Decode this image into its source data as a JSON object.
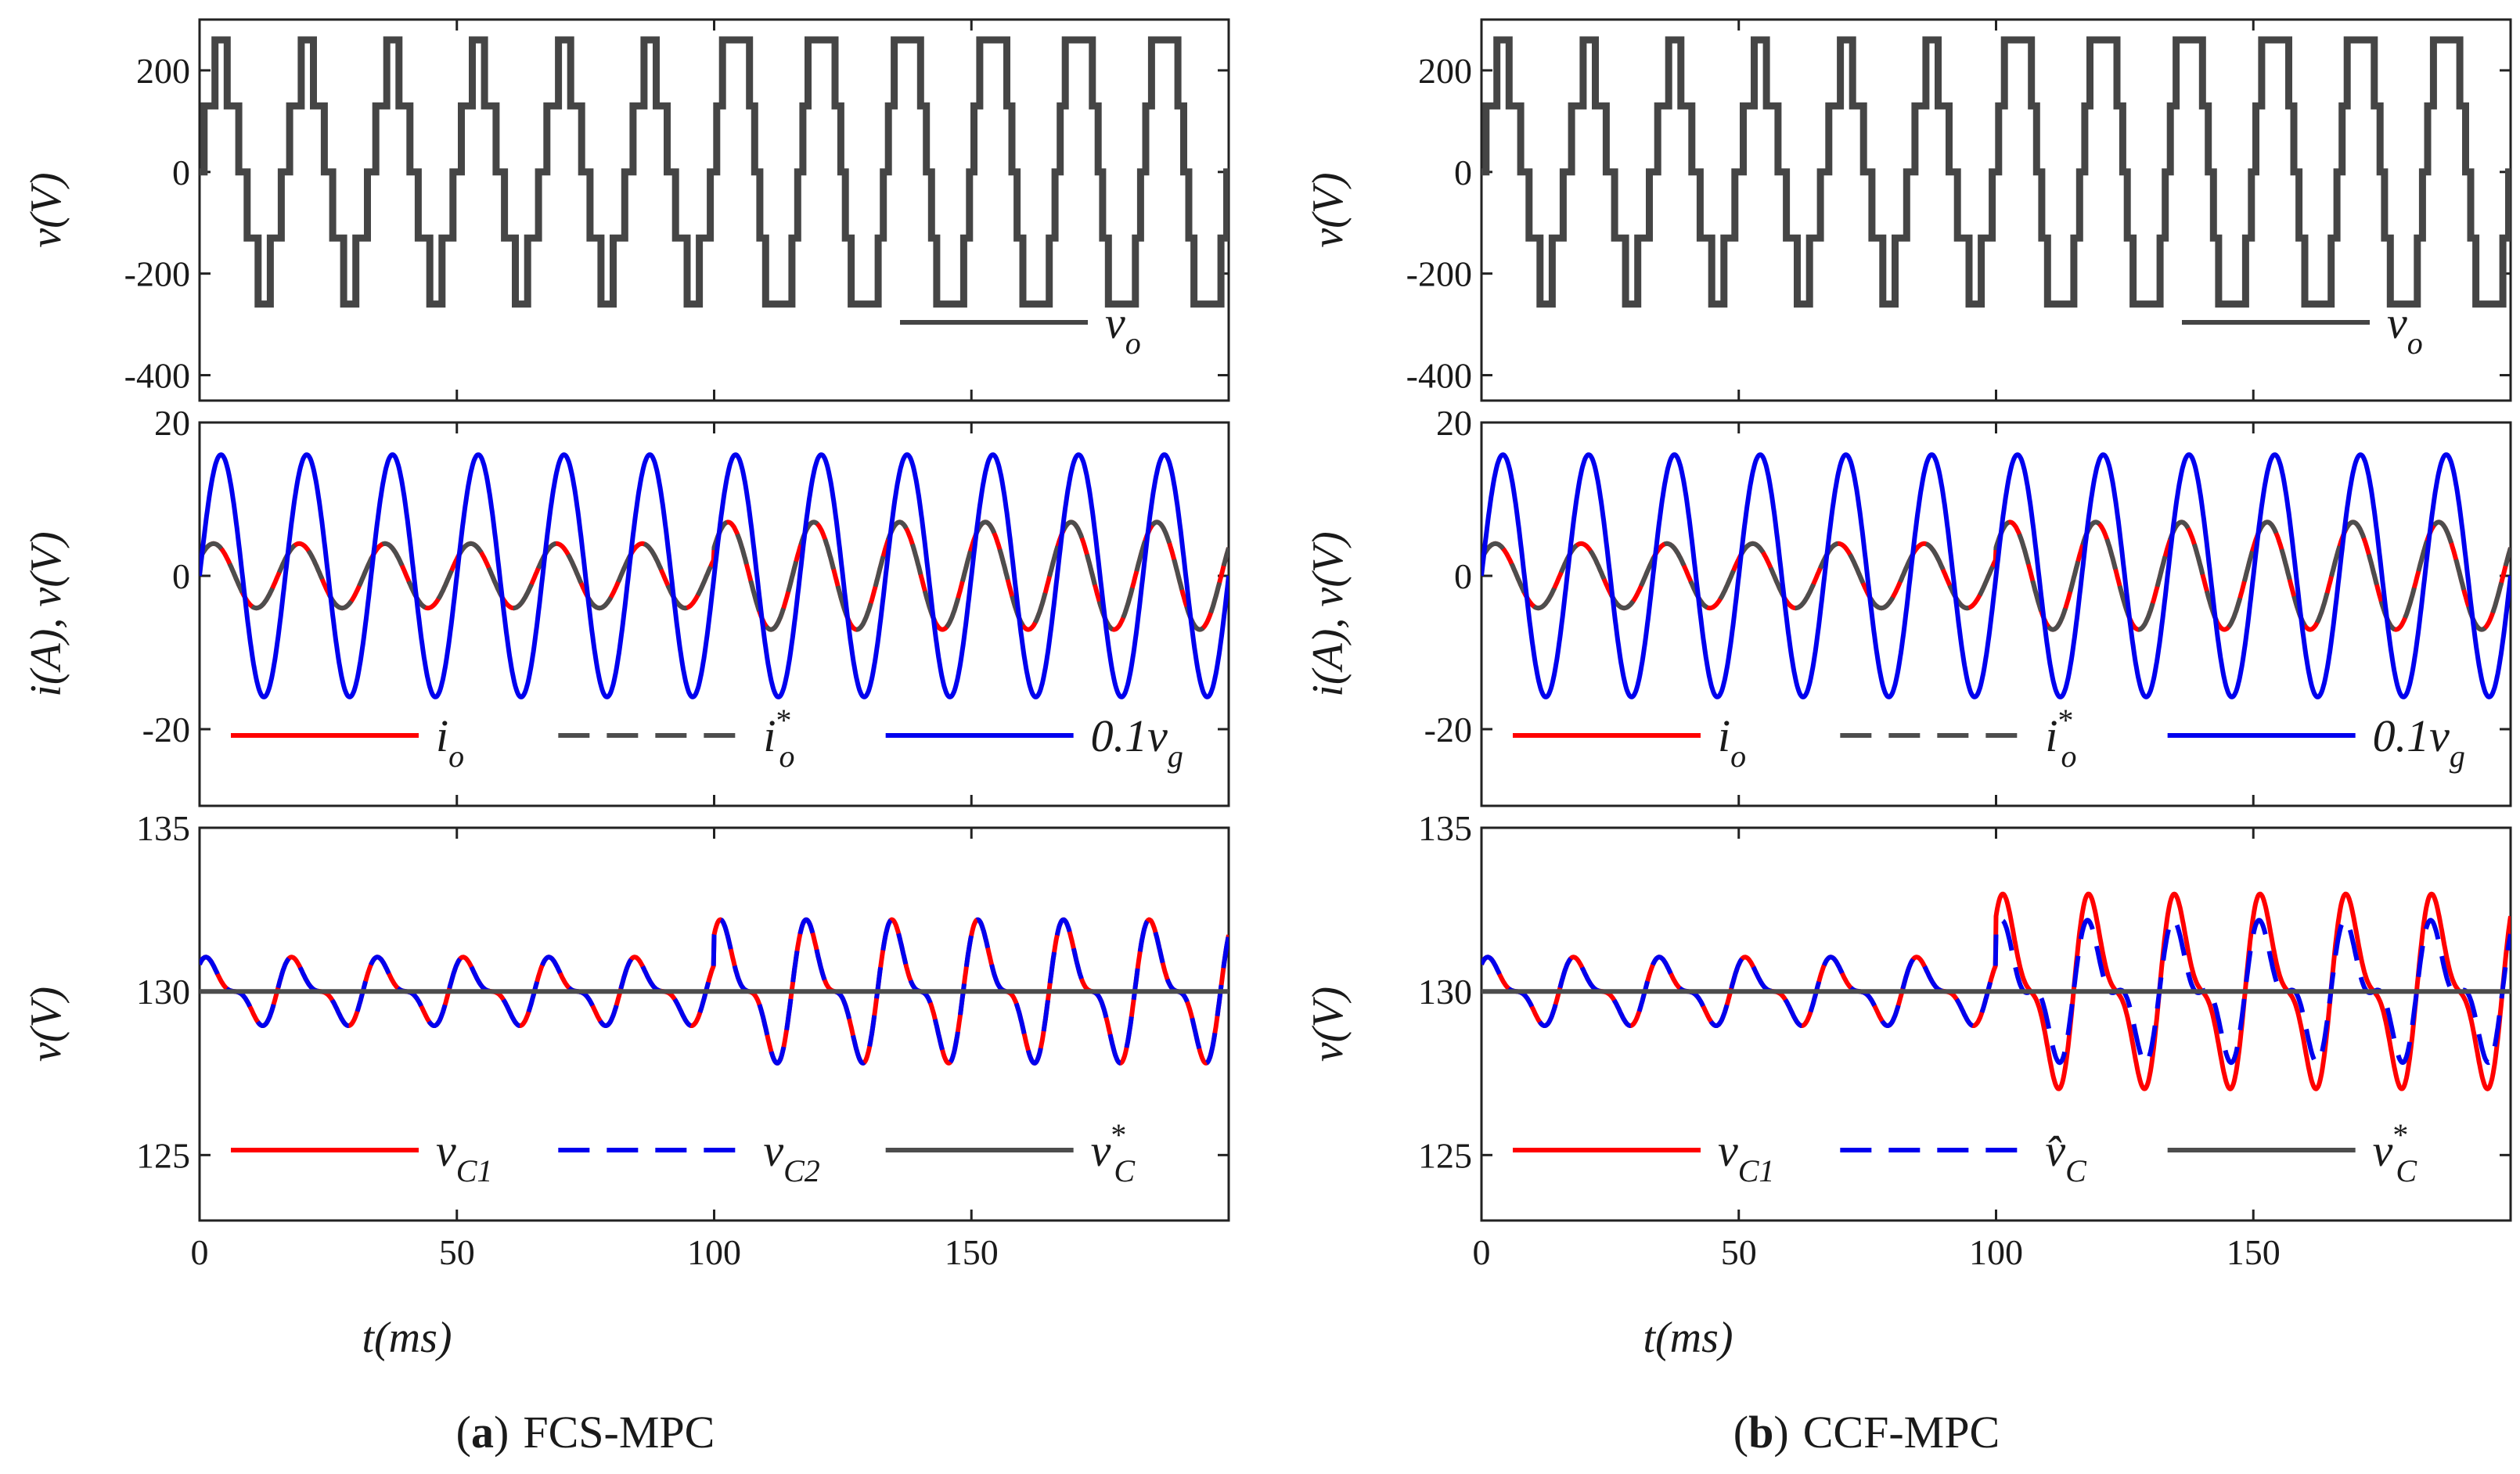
{
  "colors": {
    "red": "#ff0000",
    "blue": "#0000ee",
    "gray": "#4d4d4d",
    "dark": "#454545",
    "axis": "#222222"
  },
  "captions": [
    {
      "letter": "a",
      "open": "(",
      "close": ")",
      "text": "FCS-MPC"
    },
    {
      "letter": "b",
      "open": "(",
      "close": ")",
      "text": "CCF-MPC"
    }
  ],
  "xaxis": {
    "label": "t(ms)",
    "ticks": [
      "0",
      "50",
      "100",
      "150"
    ],
    "tick_values": [
      0,
      50,
      100,
      150
    ],
    "range": [
      0,
      200
    ]
  },
  "chart_data": [
    {
      "id": "a-top",
      "type": "line",
      "ylabel": "v(V)",
      "ylim": [
        -450,
        300
      ],
      "yticks": [
        -400,
        -200,
        0,
        200
      ],
      "ytick_labels": [
        "-400",
        "-200",
        "0",
        "200"
      ],
      "xlim": [
        0,
        200
      ],
      "series": [
        {
          "name": "v_o",
          "label": "v o",
          "kind": "multilevel",
          "color": "dark",
          "levels": [
            -260,
            -130,
            0,
            130,
            260
          ],
          "freq_hz": 60,
          "amp1": 160,
          "amp2": 260,
          "t_switch_ms": 100
        }
      ],
      "legend": [
        {
          "text": "v",
          "sub": "o",
          "color": "dark",
          "dash": "solid"
        }
      ]
    },
    {
      "id": "a-mid",
      "type": "line",
      "ylabel": "i(A), v(V)",
      "ylim": [
        -30,
        20
      ],
      "yticks": [
        -20,
        0,
        20
      ],
      "ytick_labels": [
        "-20",
        "0",
        "20"
      ],
      "xlim": [
        0,
        200
      ],
      "series": [
        {
          "name": "i_o",
          "color": "red",
          "amp1": 4.2,
          "amp2": 7,
          "phase": 0.55,
          "freq_hz": 60,
          "t_switch_ms": 100
        },
        {
          "name": "i_o*",
          "color": "gray",
          "amp1": 4.2,
          "amp2": 7,
          "phase": 0.55,
          "freq_hz": 60,
          "t_switch_ms": 100,
          "dash": true
        },
        {
          "name": "0.1v_g",
          "color": "blue",
          "amp1": 15.8,
          "amp2": 15.8,
          "phase": 0,
          "freq_hz": 60,
          "t_switch_ms": 100
        }
      ],
      "legend": [
        {
          "text": "i",
          "sub": "o",
          "color": "red",
          "dash": "solid"
        },
        {
          "text": "i",
          "sub": "o",
          "sup": "*",
          "color": "gray",
          "dash": "dash"
        },
        {
          "text": "0.1v",
          "sub": "g",
          "color": "blue",
          "dash": "solid"
        }
      ]
    },
    {
      "id": "a-bot",
      "type": "line",
      "ylabel": "v(V)",
      "ylim": [
        123,
        135
      ],
      "yticks": [
        125,
        130,
        135
      ],
      "ytick_labels": [
        "125",
        "130",
        "135"
      ],
      "xlim": [
        0,
        200
      ],
      "series": [
        {
          "name": "v_C1",
          "color": "red",
          "ref": 130,
          "amp1": 1.1,
          "amp2": 2.3,
          "offset_b": 0
        },
        {
          "name": "v_C2",
          "color": "blue",
          "ref": 130,
          "amp1": 1.1,
          "amp2": 2.3,
          "offset_b": 0,
          "dash": true
        },
        {
          "name": "v_C*",
          "color": "gray",
          "ref": 130,
          "flat": true
        }
      ],
      "legend": [
        {
          "text": "v",
          "sub": "C1",
          "color": "red",
          "dash": "solid"
        },
        {
          "text": "v",
          "sub": "C2",
          "color": "blue",
          "dash": "dash"
        },
        {
          "text": "v",
          "sub": "C",
          "sup": "*",
          "color": "gray",
          "dash": "solid"
        }
      ]
    },
    {
      "id": "b-top",
      "type": "line",
      "ylabel": "v(V)",
      "ylim": [
        -450,
        300
      ],
      "yticks": [
        -400,
        -200,
        0,
        200
      ],
      "ytick_labels": [
        "-400",
        "-200",
        "0",
        "200"
      ],
      "xlim": [
        0,
        200
      ],
      "series": [
        {
          "name": "v_o",
          "kind": "multilevel",
          "color": "dark",
          "levels": [
            -260,
            -130,
            0,
            130,
            260
          ],
          "freq_hz": 60,
          "amp1": 160,
          "amp2": 260,
          "t_switch_ms": 100
        }
      ],
      "legend": [
        {
          "text": "v",
          "sub": "o",
          "color": "dark",
          "dash": "solid"
        }
      ]
    },
    {
      "id": "b-mid",
      "type": "line",
      "ylabel": "i(A), v(V)",
      "ylim": [
        -30,
        20
      ],
      "yticks": [
        -20,
        0,
        20
      ],
      "ytick_labels": [
        "-20",
        "0",
        "20"
      ],
      "xlim": [
        0,
        200
      ],
      "series": [
        {
          "name": "i_o",
          "color": "red",
          "amp1": 4.2,
          "amp2": 7,
          "phase": 0.55,
          "freq_hz": 60,
          "t_switch_ms": 100
        },
        {
          "name": "i_o*",
          "color": "gray",
          "amp1": 4.2,
          "amp2": 7,
          "phase": 0.55,
          "freq_hz": 60,
          "t_switch_ms": 100,
          "dash": true
        },
        {
          "name": "0.1v_g",
          "color": "blue",
          "amp1": 15.8,
          "amp2": 15.8,
          "phase": 0,
          "freq_hz": 60,
          "t_switch_ms": 100
        }
      ],
      "legend": [
        {
          "text": "i",
          "sub": "o",
          "color": "red",
          "dash": "solid"
        },
        {
          "text": "i",
          "sub": "o",
          "sup": "*",
          "color": "gray",
          "dash": "dash"
        },
        {
          "text": "0.1v",
          "sub": "g",
          "color": "blue",
          "dash": "solid"
        }
      ]
    },
    {
      "id": "b-bot",
      "type": "line",
      "ylabel": "v(V)",
      "ylim": [
        123,
        135
      ],
      "yticks": [
        125,
        130,
        135
      ],
      "ytick_labels": [
        "125",
        "130",
        "135"
      ],
      "xlim": [
        0,
        200
      ],
      "series": [
        {
          "name": "v_C1",
          "color": "red",
          "ref": 130,
          "amp1": 1.1,
          "amp2": 2.8,
          "offset_b": 0.35
        },
        {
          "name": "v_C_hat",
          "color": "blue",
          "ref": 130,
          "amp1": 1.1,
          "amp2": 2.6,
          "offset_b": -0.35,
          "dash": true
        },
        {
          "name": "v_C*",
          "color": "gray",
          "ref": 130,
          "flat": true
        }
      ],
      "legend": [
        {
          "text": "v",
          "sub": "C1",
          "color": "red",
          "dash": "solid"
        },
        {
          "text": "v̂",
          "sub": "C",
          "color": "blue",
          "dash": "dash"
        },
        {
          "text": "v",
          "sub": "C",
          "sup": "*",
          "color": "gray",
          "dash": "solid"
        }
      ]
    }
  ]
}
